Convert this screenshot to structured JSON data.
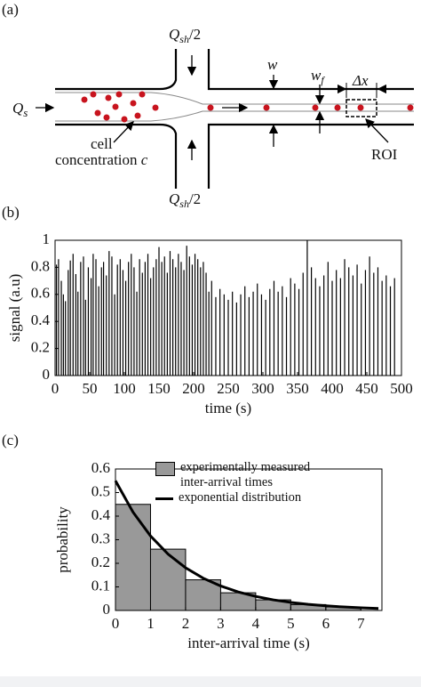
{
  "panel_a": {
    "label": "(a)",
    "q_sh_top": {
      "main": "Q",
      "sub": "sh",
      "rest": "/2"
    },
    "q_sh_bottom": {
      "main": "Q",
      "sub": "sh",
      "rest": "/2"
    },
    "q_s": {
      "main": "Q",
      "sub": "s"
    },
    "w": "w",
    "w_f": {
      "main": "w",
      "sub": "f"
    },
    "dx": "Δx",
    "cell": "cell",
    "concentration": "concentration",
    "c": "c",
    "roi": "ROI"
  },
  "chart_data": [
    {
      "type": "stem",
      "label": "(b)",
      "xlabel": "time (s)",
      "ylabel": "signal (a.u)",
      "color": "#000000",
      "x": [
        2,
        5,
        9,
        12,
        15,
        19,
        22,
        26,
        30,
        33,
        37,
        41,
        44,
        48,
        52,
        55,
        59,
        63,
        67,
        70,
        74,
        78,
        82,
        86,
        90,
        94,
        98,
        102,
        106,
        110,
        114,
        118,
        122,
        126,
        130,
        134,
        138,
        142,
        146,
        150,
        154,
        158,
        162,
        166,
        170,
        174,
        178,
        182,
        186,
        190,
        194,
        198,
        202,
        206,
        210,
        214,
        218,
        222,
        226,
        232,
        238,
        244,
        250,
        256,
        262,
        268,
        274,
        280,
        286,
        292,
        298,
        304,
        310,
        316,
        322,
        328,
        334,
        340,
        346,
        352,
        358,
        364,
        370,
        376,
        382,
        388,
        394,
        400,
        406,
        412,
        418,
        424,
        430,
        436,
        442,
        448,
        454,
        460,
        466,
        472,
        478,
        484,
        490
      ],
      "values": [
        0.82,
        0.86,
        0.7,
        0.6,
        0.55,
        0.78,
        0.85,
        0.9,
        0.75,
        0.62,
        0.84,
        0.88,
        0.56,
        0.8,
        0.72,
        0.9,
        0.86,
        0.66,
        0.8,
        0.84,
        0.74,
        0.92,
        0.88,
        0.6,
        0.82,
        0.86,
        0.78,
        0.7,
        0.84,
        0.9,
        0.8,
        0.62,
        0.86,
        0.76,
        0.84,
        0.9,
        0.72,
        0.8,
        0.86,
        0.95,
        0.84,
        0.88,
        0.76,
        0.92,
        0.86,
        0.8,
        0.9,
        0.84,
        0.78,
        0.96,
        0.88,
        0.82,
        0.9,
        0.86,
        0.8,
        0.84,
        0.76,
        0.62,
        0.7,
        0.58,
        0.64,
        0.6,
        0.56,
        0.62,
        0.54,
        0.6,
        0.66,
        0.58,
        0.62,
        0.68,
        0.6,
        0.56,
        0.64,
        0.7,
        0.62,
        0.66,
        0.58,
        0.72,
        0.68,
        0.64,
        0.76,
        1.0,
        0.8,
        0.72,
        0.66,
        0.74,
        0.84,
        0.7,
        0.78,
        0.72,
        0.86,
        0.8,
        0.74,
        0.82,
        0.68,
        0.78,
        0.88,
        0.76,
        0.8,
        0.7,
        0.74,
        0.66,
        0.72
      ],
      "xlim": [
        0,
        500
      ],
      "ylim": [
        0,
        1
      ],
      "xticks": [
        0,
        50,
        100,
        150,
        200,
        250,
        300,
        350,
        400,
        450,
        500
      ],
      "yticks": [
        0,
        0.2,
        0.4,
        0.6,
        0.8,
        1
      ]
    },
    {
      "type": "histogram",
      "label": "(c)",
      "xlabel": "inter-arrival time (s)",
      "ylabel": "probability",
      "series": [
        {
          "name": "experimentally measured inter-arrival times",
          "color": "#999999",
          "bins": [
            0,
            1,
            2,
            3,
            4,
            5,
            6,
            7
          ],
          "values": [
            0.45,
            0.26,
            0.13,
            0.075,
            0.045,
            0.025,
            0.015
          ]
        },
        {
          "name": "exponential distribution",
          "color": "#000000",
          "x": [
            0,
            0.5,
            1,
            1.5,
            2,
            2.5,
            3,
            3.5,
            4,
            4.5,
            5,
            5.5,
            6,
            6.5,
            7,
            7.5
          ],
          "values": [
            0.55,
            0.417,
            0.316,
            0.239,
            0.181,
            0.137,
            0.104,
            0.0787,
            0.0596,
            0.0451,
            0.0342,
            0.0259,
            0.0196,
            0.0149,
            0.0113,
            0.0085
          ]
        }
      ],
      "xlim": [
        0,
        7.6
      ],
      "ylim": [
        0,
        0.6
      ],
      "xticks": [
        0,
        1,
        2,
        3,
        4,
        5,
        6,
        7
      ],
      "yticks": [
        0,
        0.1,
        0.2,
        0.3,
        0.4,
        0.5,
        0.6
      ]
    }
  ]
}
